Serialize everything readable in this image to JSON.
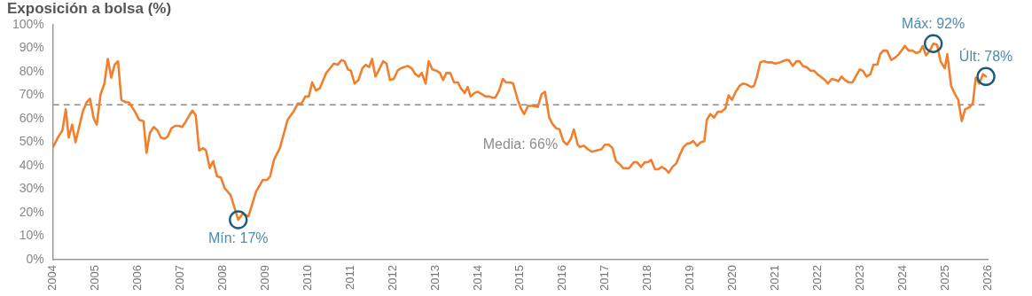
{
  "chart_data": {
    "type": "line",
    "title": "Exposición a bolsa (%)",
    "color": "#f07f2e",
    "marker": "none",
    "x": [
      2004.0,
      2004.13,
      2004.22,
      2004.3,
      2004.37,
      2004.45,
      2004.53,
      2004.7,
      2004.79,
      2004.87,
      2004.96,
      2005.03,
      2005.12,
      2005.21,
      2005.29,
      2005.37,
      2005.45,
      2005.53,
      2005.61,
      2005.72,
      2005.79,
      2005.93,
      2006.03,
      2006.13,
      2006.2,
      2006.28,
      2006.37,
      2006.46,
      2006.54,
      2006.63,
      2006.7,
      2006.79,
      2006.88,
      2006.96,
      2007.04,
      2007.13,
      2007.21,
      2007.28,
      2007.36,
      2007.44,
      2007.53,
      2007.6,
      2007.69,
      2007.77,
      2007.86,
      2007.95,
      2008.04,
      2008.18,
      2008.36,
      2008.46,
      2008.6,
      2008.78,
      2008.94,
      2009.04,
      2009.11,
      2009.2,
      2009.34,
      2009.52,
      2009.66,
      2009.76,
      2009.85,
      2009.94,
      2010.02,
      2010.1,
      2010.19,
      2010.28,
      2010.43,
      2010.61,
      2010.7,
      2010.79,
      2010.86,
      2010.94,
      2011.01,
      2011.1,
      2011.19,
      2011.28,
      2011.36,
      2011.44,
      2011.51,
      2011.59,
      2011.69,
      2011.77,
      2011.85,
      2011.93,
      2012.02,
      2012.11,
      2012.19,
      2012.35,
      2012.44,
      2012.53,
      2012.61,
      2012.68,
      2012.77,
      2012.84,
      2012.93,
      2013.02,
      2013.11,
      2013.18,
      2013.26,
      2013.35,
      2013.44,
      2013.53,
      2013.6,
      2013.69,
      2013.76,
      2013.83,
      2013.92,
      2014.0,
      2014.09,
      2014.18,
      2014.27,
      2014.34,
      2014.41,
      2014.5,
      2014.59,
      2014.66,
      2014.76,
      2014.83,
      2014.94,
      2015.01,
      2015.09,
      2015.18,
      2015.29,
      2015.41,
      2015.5,
      2015.58,
      2015.68,
      2015.75,
      2015.84,
      2015.92,
      2016.01,
      2016.1,
      2016.19,
      2016.26,
      2016.35,
      2016.4,
      2016.5,
      2016.59,
      2016.68,
      2016.8,
      2016.91,
      2016.99,
      2017.08,
      2017.17,
      2017.25,
      2017.35,
      2017.42,
      2017.56,
      2017.67,
      2017.75,
      2017.84,
      2017.93,
      2018.0,
      2018.08,
      2018.17,
      2018.24,
      2018.33,
      2018.42,
      2018.49,
      2018.58,
      2018.67,
      2018.75,
      2018.84,
      2018.93,
      2018.98,
      2019.07,
      2019.16,
      2019.25,
      2019.33,
      2019.39,
      2019.47,
      2019.56,
      2019.65,
      2019.74,
      2019.83,
      2019.9,
      2019.98,
      2020.07,
      2020.16,
      2020.24,
      2020.34,
      2020.43,
      2020.5,
      2020.57,
      2020.65,
      2020.72,
      2020.83,
      2020.92,
      2021.0,
      2021.11,
      2021.25,
      2021.32,
      2021.41,
      2021.5,
      2021.57,
      2021.65,
      2021.74,
      2021.83,
      2021.91,
      2021.99,
      2022.1,
      2022.17,
      2022.24,
      2022.33,
      2022.42,
      2022.49,
      2022.56,
      2022.64,
      2022.73,
      2022.82,
      2022.91,
      2022.99,
      2023.06,
      2023.15,
      2023.24,
      2023.31,
      2023.4,
      2023.47,
      2023.54,
      2023.63,
      2023.73,
      2023.82,
      2023.91,
      2024.05,
      2024.14,
      2024.23,
      2024.32,
      2024.4,
      2024.47,
      2024.55,
      2024.64,
      2024.72,
      2024.81,
      2024.89,
      2024.99,
      2025.05,
      2025.14,
      2025.23,
      2025.31,
      2025.39,
      2025.47,
      2025.58,
      2025.65,
      2025.72,
      2025.8,
      2025.89,
      2025.96
    ],
    "values": [
      48,
      52.5,
      55,
      64,
      52,
      57.5,
      50,
      63,
      67,
      68.5,
      60,
      57.5,
      70.5,
      75,
      85.5,
      77.5,
      83,
      84.5,
      68,
      67,
      67,
      63,
      59.5,
      59,
      45.5,
      54,
      56.5,
      55,
      52,
      51.5,
      52.5,
      56,
      57,
      57,
      56.5,
      59,
      61.5,
      63.5,
      61.5,
      46.5,
      47.5,
      46.5,
      39,
      42,
      35.5,
      35,
      30.5,
      27.5,
      17,
      19.5,
      18.5,
      29,
      34,
      34,
      35.5,
      42.5,
      47.5,
      59.5,
      63,
      66.5,
      66.5,
      69.5,
      69.5,
      75.5,
      72,
      73,
      79.5,
      83.5,
      83,
      85,
      84.5,
      81,
      80.5,
      75,
      76.5,
      81.5,
      83,
      82,
      85.5,
      78,
      81.5,
      84.5,
      83.5,
      76.5,
      77,
      80.5,
      81.5,
      82.5,
      81.5,
      79,
      78,
      79.5,
      75,
      84.5,
      81,
      80.5,
      79.5,
      76.5,
      79.5,
      79.5,
      75.5,
      75.5,
      73,
      71,
      73.5,
      69.5,
      71,
      71.5,
      70.5,
      69.5,
      69.5,
      69,
      69,
      72,
      77,
      75.5,
      75.5,
      75,
      68,
      64.5,
      62,
      65.5,
      65.5,
      65,
      70.5,
      71.5,
      60.5,
      58,
      56,
      55.5,
      50.5,
      49,
      51.5,
      55.5,
      49,
      48,
      48.5,
      47,
      46,
      46.5,
      47,
      49,
      49,
      47.5,
      42,
      40.5,
      39,
      39,
      41.5,
      41.5,
      39.5,
      41.5,
      41.5,
      42.5,
      38.5,
      38.5,
      39.5,
      38.5,
      37,
      39.5,
      41,
      44.5,
      48,
      49.5,
      49.5,
      50.5,
      48.5,
      50,
      50.5,
      59.5,
      62,
      60.5,
      63,
      63,
      64.5,
      70,
      68,
      71.5,
      74,
      75,
      74.5,
      73.5,
      74,
      78,
      84,
      84.5,
      84,
      84,
      83.5,
      84,
      85,
      85,
      82.5,
      84.5,
      84.5,
      82.5,
      82,
      80.5,
      80.5,
      79,
      77.5,
      76.5,
      75,
      77,
      76.5,
      76,
      78,
      76.5,
      75.5,
      75.5,
      78.5,
      81,
      80.5,
      78,
      79,
      83,
      83,
      87.5,
      89,
      89,
      85,
      86,
      87.5,
      91,
      89,
      89,
      88,
      88.5,
      91,
      87,
      89,
      92,
      91.5,
      84.5,
      81.5,
      87.5,
      74,
      70.5,
      68,
      59,
      64,
      65,
      66.5,
      77.5,
      75,
      79,
      78
    ],
    "xlim": [
      2004,
      2026
    ],
    "xticks": [
      2004,
      2005,
      2006,
      2007,
      2008,
      2009,
      2010,
      2011,
      2012,
      2013,
      2014,
      2015,
      2016,
      2017,
      2018,
      2019,
      2020,
      2021,
      2022,
      2023,
      2024,
      2025,
      2026
    ],
    "ylim": [
      0,
      100
    ],
    "yticks": [
      {
        "value": 0,
        "label": "0%"
      },
      {
        "value": 10,
        "label": "10%"
      },
      {
        "value": 20,
        "label": "20%"
      },
      {
        "value": 30,
        "label": "30%"
      },
      {
        "value": 40,
        "label": "40%"
      },
      {
        "value": 50,
        "label": "50%"
      },
      {
        "value": 60,
        "label": "60%"
      },
      {
        "value": 70,
        "label": "70%"
      },
      {
        "value": 80,
        "label": "80%"
      },
      {
        "value": 90,
        "label": "90%"
      },
      {
        "value": 100,
        "label": "100%"
      }
    ],
    "ref_lines": [
      {
        "axis": "y",
        "value": 66,
        "label": "Media: 66%",
        "color": "#8c8c8c",
        "line_style": "dashed"
      }
    ],
    "annotations": [
      {
        "text": "Mín: 17%",
        "x": 2008.36,
        "y": 17
      },
      {
        "text": "Máx: 92%",
        "x": 2024.72,
        "y": 92
      },
      {
        "text": "Últ: 78%",
        "x": 2025.96,
        "y": 78
      }
    ]
  }
}
